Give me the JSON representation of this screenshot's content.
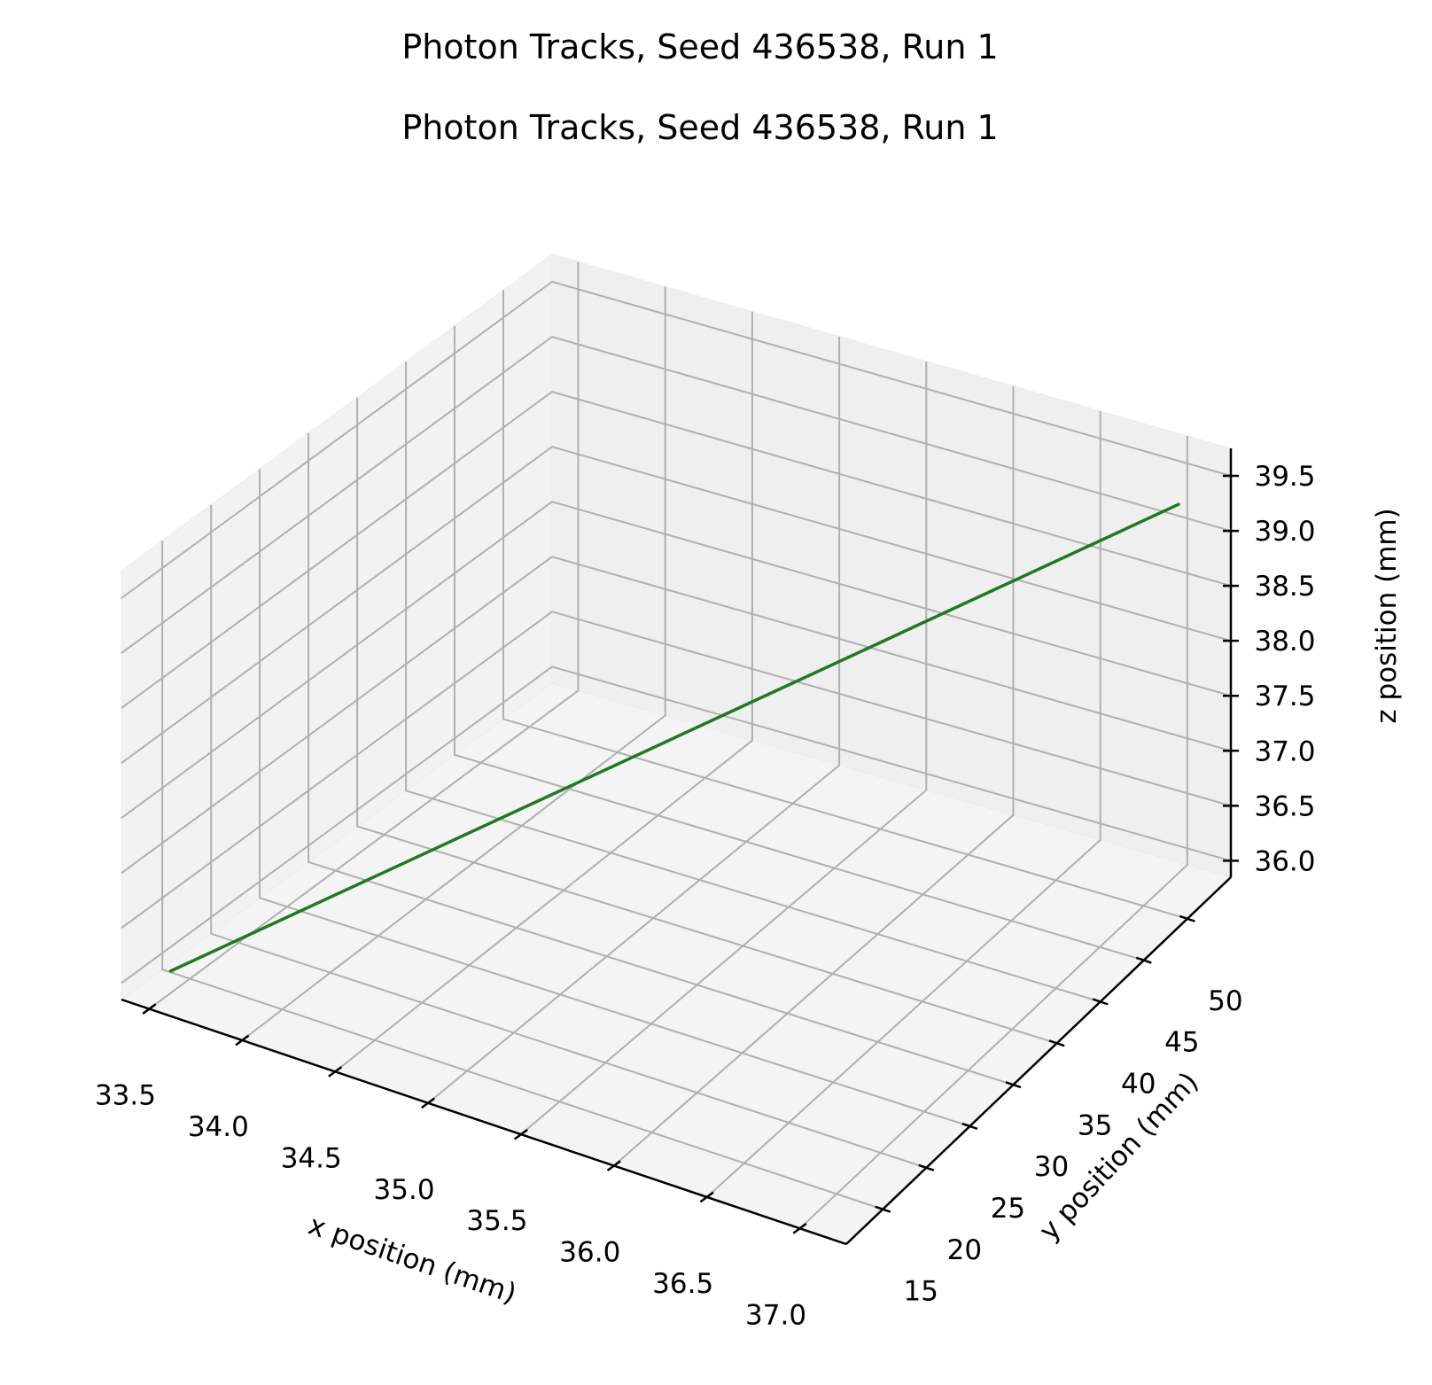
{
  "titles": [
    "Photon Tracks, Seed 436538, Run 1",
    "Photon Tracks, Seed 436538, Run 1"
  ],
  "chart_data": {
    "type": "line3d",
    "xlabel": "x position (mm)",
    "ylabel": "y position (mm)",
    "zlabel": "z position (mm)",
    "xlim": [
      33.35,
      37.25
    ],
    "ylim": [
      10.8,
      55.0
    ],
    "zlim": [
      35.85,
      39.75
    ],
    "xticks": [
      "33.5",
      "34.0",
      "34.5",
      "35.0",
      "35.5",
      "36.0",
      "36.5",
      "37.0"
    ],
    "yticks": [
      "15",
      "20",
      "25",
      "30",
      "35",
      "40",
      "45",
      "50"
    ],
    "zticks": [
      "36.0",
      "36.5",
      "37.0",
      "37.5",
      "38.0",
      "38.5",
      "39.0",
      "39.5"
    ],
    "grid": true,
    "series": [
      {
        "color": "#1f7a1f",
        "points": [
          [
            33.5,
            13.0,
            36.05
          ],
          [
            37.05,
            53.0,
            39.3
          ]
        ]
      }
    ]
  }
}
